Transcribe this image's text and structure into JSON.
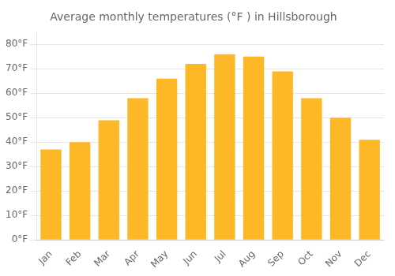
{
  "chart_data": {
    "type": "bar",
    "title": "Average monthly temperatures (°F ) in Hillsborough",
    "categories": [
      "Jan",
      "Feb",
      "Mar",
      "Apr",
      "May",
      "Jun",
      "Jul",
      "Aug",
      "Sep",
      "Oct",
      "Nov",
      "Dec"
    ],
    "values": [
      37,
      40,
      49,
      58,
      66,
      72,
      76,
      75,
      69,
      58,
      50,
      41
    ],
    "color": "#FDB827",
    "ylim": [
      0,
      85
    ],
    "yticks": [
      {
        "value": 0,
        "label": "0°F"
      },
      {
        "value": 10,
        "label": "10°F"
      },
      {
        "value": 20,
        "label": "20°F"
      },
      {
        "value": 30,
        "label": "30°F"
      },
      {
        "value": 40,
        "label": "40°F"
      },
      {
        "value": 50,
        "label": "50°F"
      },
      {
        "value": 60,
        "label": "60°F"
      },
      {
        "value": 70,
        "label": "70°F"
      },
      {
        "value": 80,
        "label": "80°F"
      }
    ],
    "grid": true
  }
}
